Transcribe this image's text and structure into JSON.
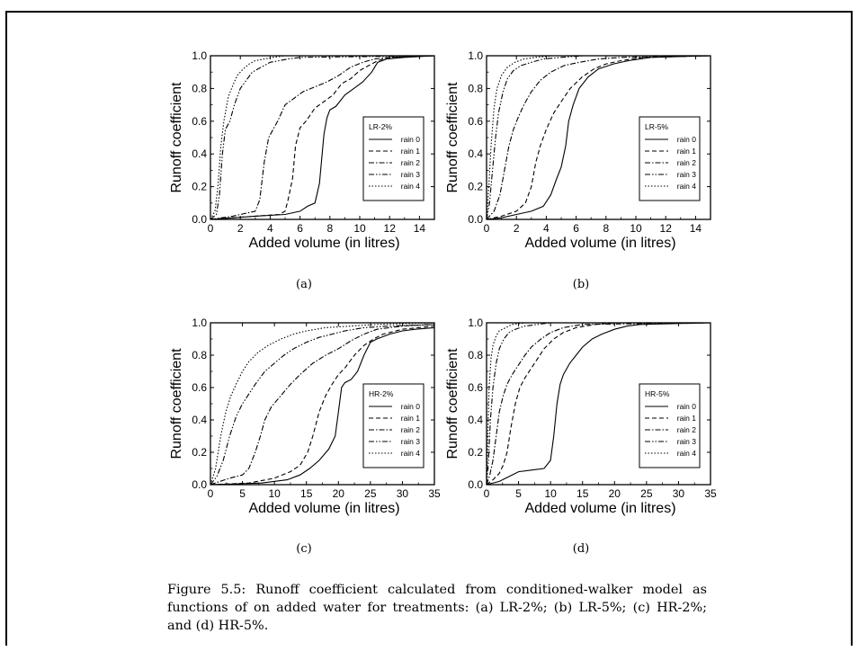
{
  "figure": {
    "caption_number": "Figure 5.5:",
    "caption_text": "Runoff coefficient calculated from conditioned-walker model as functions of on added water for treatments: (a) LR-2%; (b) LR-5%; (c) HR-2%; and (d) HR-5%."
  },
  "chart_data": [
    {
      "type": "line",
      "panel": "(a)",
      "legend_title": "LR-2%",
      "xlabel": "Added volume (in litres)",
      "ylabel": "Runoff coefficient",
      "xlim": [
        0,
        15
      ],
      "ylim": [
        0,
        1
      ],
      "xticks": [
        0,
        2,
        4,
        6,
        8,
        10,
        12,
        14
      ],
      "yticks": [
        0.0,
        0.2,
        0.4,
        0.6,
        0.8,
        1.0
      ],
      "series": [
        {
          "name": "rain 0",
          "dash": "solid",
          "x": [
            0,
            3,
            5,
            6,
            6.5,
            7,
            7.3,
            7.6,
            7.8,
            8,
            8.4,
            9,
            9.6,
            10.2,
            10.8,
            11.2,
            11.8,
            13,
            15
          ],
          "y": [
            0,
            0.02,
            0.03,
            0.05,
            0.08,
            0.1,
            0.22,
            0.52,
            0.62,
            0.67,
            0.69,
            0.76,
            0.8,
            0.84,
            0.9,
            0.96,
            0.98,
            0.99,
            1.0
          ]
        },
        {
          "name": "rain 1",
          "dash": "dashed",
          "x": [
            0,
            3,
            4.6,
            5,
            5.2,
            5.5,
            5.7,
            6,
            6.4,
            7,
            7.6,
            8.2,
            8.8,
            9.4,
            10,
            10.6,
            11.2,
            12,
            15
          ],
          "y": [
            0,
            0.02,
            0.03,
            0.05,
            0.12,
            0.25,
            0.45,
            0.56,
            0.6,
            0.68,
            0.72,
            0.76,
            0.83,
            0.86,
            0.91,
            0.94,
            0.97,
            0.99,
            1.0
          ]
        },
        {
          "name": "rain 2",
          "dash": "dashdot",
          "x": [
            0,
            1.5,
            3,
            3.3,
            3.6,
            3.9,
            4.2,
            4.5,
            5,
            5.6,
            6.2,
            7,
            7.8,
            8.6,
            9.4,
            10.2,
            11,
            12,
            15
          ],
          "y": [
            0,
            0.02,
            0.05,
            0.12,
            0.35,
            0.5,
            0.55,
            0.6,
            0.7,
            0.74,
            0.78,
            0.81,
            0.84,
            0.88,
            0.93,
            0.96,
            0.98,
            0.99,
            1.0
          ]
        },
        {
          "name": "rain 3",
          "dash": "dashdotdot",
          "x": [
            0,
            0.4,
            0.6,
            0.8,
            1,
            1.3,
            1.6,
            2,
            2.4,
            2.8,
            3.4,
            4,
            4.6,
            5.2,
            6,
            15
          ],
          "y": [
            0,
            0.03,
            0.15,
            0.4,
            0.55,
            0.6,
            0.7,
            0.8,
            0.85,
            0.9,
            0.93,
            0.96,
            0.97,
            0.98,
            0.99,
            1.0
          ]
        },
        {
          "name": "rain 4",
          "dash": "dotted",
          "x": [
            0,
            0.3,
            0.5,
            0.7,
            0.9,
            1.2,
            1.5,
            1.8,
            2.2,
            2.6,
            3,
            3.6,
            4.2,
            5,
            15
          ],
          "y": [
            0,
            0.05,
            0.2,
            0.45,
            0.6,
            0.75,
            0.82,
            0.88,
            0.92,
            0.95,
            0.97,
            0.98,
            0.99,
            1.0,
            1.0
          ]
        }
      ]
    },
    {
      "type": "line",
      "panel": "(b)",
      "legend_title": "LR-5%",
      "xlabel": "Added volume (in litres)",
      "ylabel": "Runoff coefficient",
      "xlim": [
        0,
        15
      ],
      "ylim": [
        0,
        1
      ],
      "xticks": [
        0,
        2,
        4,
        6,
        8,
        10,
        12,
        14
      ],
      "yticks": [
        0.0,
        0.2,
        0.4,
        0.6,
        0.8,
        1.0
      ],
      "series": [
        {
          "name": "rain 0",
          "dash": "solid",
          "x": [
            0,
            1,
            2,
            3,
            3.8,
            4.3,
            4.7,
            5,
            5.3,
            5.5,
            5.8,
            6.2,
            6.8,
            7.5,
            8.5,
            9.5,
            11,
            15
          ],
          "y": [
            0,
            0.01,
            0.03,
            0.05,
            0.08,
            0.15,
            0.25,
            0.32,
            0.45,
            0.6,
            0.7,
            0.8,
            0.87,
            0.92,
            0.95,
            0.97,
            0.99,
            1.0
          ]
        },
        {
          "name": "rain 1",
          "dash": "dashed",
          "x": [
            0,
            1,
            2,
            2.6,
            3,
            3.3,
            3.6,
            4,
            4.5,
            5,
            5.6,
            6.4,
            7.2,
            8,
            9,
            10.5,
            15
          ],
          "y": [
            0,
            0.02,
            0.05,
            0.1,
            0.2,
            0.35,
            0.45,
            0.55,
            0.65,
            0.72,
            0.8,
            0.87,
            0.92,
            0.95,
            0.97,
            0.99,
            1.0
          ]
        },
        {
          "name": "rain 2",
          "dash": "dashdot",
          "x": [
            0,
            0.5,
            0.9,
            1.2,
            1.5,
            1.8,
            2.1,
            2.5,
            3,
            3.6,
            4.3,
            5.2,
            6.2,
            7.5,
            9,
            15
          ],
          "y": [
            0,
            0.05,
            0.15,
            0.3,
            0.45,
            0.55,
            0.62,
            0.7,
            0.78,
            0.85,
            0.9,
            0.94,
            0.96,
            0.98,
            0.99,
            1.0
          ]
        },
        {
          "name": "rain 3",
          "dash": "dashdotdot",
          "x": [
            0,
            0.2,
            0.4,
            0.6,
            0.8,
            1.1,
            1.4,
            1.8,
            2.3,
            3,
            3.8,
            5,
            6.5,
            15
          ],
          "y": [
            0,
            0.1,
            0.3,
            0.5,
            0.65,
            0.78,
            0.86,
            0.91,
            0.94,
            0.96,
            0.98,
            0.99,
            1.0,
            1.0
          ]
        },
        {
          "name": "rain 4",
          "dash": "dotted",
          "x": [
            0,
            0.15,
            0.3,
            0.5,
            0.7,
            1,
            1.4,
            1.9,
            2.5,
            3.3,
            4.5,
            15
          ],
          "y": [
            0,
            0.2,
            0.45,
            0.68,
            0.8,
            0.88,
            0.93,
            0.96,
            0.98,
            0.99,
            1.0,
            1.0
          ]
        }
      ]
    },
    {
      "type": "line",
      "panel": "(c)",
      "legend_title": "HR-2%",
      "xlabel": "Added volume (in litres)",
      "ylabel": "Runoff coefficient",
      "xlim": [
        0,
        35
      ],
      "ylim": [
        0,
        1
      ],
      "xticks": [
        0,
        5,
        10,
        15,
        20,
        25,
        30,
        35
      ],
      "yticks": [
        0.0,
        0.2,
        0.4,
        0.6,
        0.8,
        1.0
      ],
      "series": [
        {
          "name": "rain 0",
          "dash": "solid",
          "x": [
            0,
            8,
            12,
            14,
            15.5,
            17,
            18.5,
            19.5,
            20,
            20.5,
            21,
            22,
            23,
            24,
            25,
            26,
            28,
            30,
            32,
            35
          ],
          "y": [
            0,
            0.01,
            0.03,
            0.06,
            0.1,
            0.15,
            0.22,
            0.3,
            0.45,
            0.6,
            0.63,
            0.65,
            0.7,
            0.8,
            0.88,
            0.9,
            0.93,
            0.95,
            0.96,
            0.97
          ]
        },
        {
          "name": "rain 1",
          "dash": "dashed",
          "x": [
            0,
            6,
            10,
            12.5,
            14,
            15.2,
            16,
            17,
            18,
            19,
            20,
            21,
            22.5,
            24,
            25.5,
            27,
            30,
            35
          ],
          "y": [
            0,
            0.01,
            0.04,
            0.08,
            0.12,
            0.2,
            0.3,
            0.45,
            0.55,
            0.62,
            0.68,
            0.72,
            0.8,
            0.86,
            0.9,
            0.93,
            0.96,
            0.98
          ]
        },
        {
          "name": "rain 2",
          "dash": "dashdot",
          "x": [
            0,
            3,
            5,
            6,
            7,
            7.8,
            8.5,
            9.5,
            11,
            12.5,
            14,
            16,
            18,
            20,
            22,
            24,
            26,
            30,
            35
          ],
          "y": [
            0,
            0.04,
            0.06,
            0.1,
            0.2,
            0.3,
            0.4,
            0.48,
            0.55,
            0.62,
            0.68,
            0.75,
            0.8,
            0.84,
            0.89,
            0.93,
            0.96,
            0.98,
            0.99
          ]
        },
        {
          "name": "rain 3",
          "dash": "dashdotdot",
          "x": [
            0,
            1,
            2,
            3,
            4,
            5,
            6,
            7,
            8.5,
            10,
            11.5,
            13,
            15,
            17,
            19,
            21,
            24,
            28,
            35
          ],
          "y": [
            0,
            0.05,
            0.15,
            0.3,
            0.42,
            0.5,
            0.56,
            0.62,
            0.7,
            0.75,
            0.8,
            0.84,
            0.88,
            0.91,
            0.93,
            0.95,
            0.97,
            0.98,
            0.99
          ]
        },
        {
          "name": "rain 4",
          "dash": "dotted",
          "x": [
            0,
            0.8,
            1.6,
            2.4,
            3.2,
            4,
            5,
            6,
            7.5,
            9,
            11,
            13,
            15,
            18,
            22,
            26,
            35
          ],
          "y": [
            0,
            0.1,
            0.3,
            0.45,
            0.55,
            0.62,
            0.7,
            0.76,
            0.82,
            0.86,
            0.9,
            0.93,
            0.95,
            0.97,
            0.98,
            0.99,
            1.0
          ]
        }
      ]
    },
    {
      "type": "line",
      "panel": "(d)",
      "legend_title": "HR-5%",
      "xlabel": "Added volume (in litres)",
      "ylabel": "Runoff coefficient",
      "xlim": [
        0,
        35
      ],
      "ylim": [
        0,
        1
      ],
      "xticks": [
        0,
        5,
        10,
        15,
        20,
        25,
        30,
        35
      ],
      "yticks": [
        0.0,
        0.2,
        0.4,
        0.6,
        0.8,
        1.0
      ],
      "series": [
        {
          "name": "rain 0",
          "dash": "solid",
          "x": [
            0,
            2,
            3.5,
            5,
            7,
            9,
            10,
            10.5,
            11,
            11.5,
            12,
            13,
            14,
            15,
            16.5,
            18,
            20,
            22,
            24,
            35
          ],
          "y": [
            0,
            0.02,
            0.05,
            0.08,
            0.09,
            0.1,
            0.15,
            0.3,
            0.5,
            0.62,
            0.68,
            0.75,
            0.8,
            0.85,
            0.9,
            0.93,
            0.96,
            0.98,
            0.99,
            1.0
          ]
        },
        {
          "name": "rain 1",
          "dash": "dashed",
          "x": [
            0,
            1,
            2,
            2.6,
            3.2,
            3.8,
            4.5,
            5.2,
            6,
            7,
            8,
            9,
            10.5,
            12,
            14,
            17,
            20,
            35
          ],
          "y": [
            0,
            0.03,
            0.07,
            0.12,
            0.2,
            0.35,
            0.5,
            0.6,
            0.66,
            0.72,
            0.78,
            0.84,
            0.9,
            0.94,
            0.97,
            0.99,
            1.0,
            1.0
          ]
        },
        {
          "name": "rain 2",
          "dash": "dashdot",
          "x": [
            0,
            0.5,
            1,
            1.5,
            2,
            2.6,
            3.2,
            4,
            5,
            6,
            7,
            8.5,
            10,
            12,
            15,
            35
          ],
          "y": [
            0,
            0.06,
            0.15,
            0.3,
            0.45,
            0.55,
            0.62,
            0.68,
            0.74,
            0.8,
            0.85,
            0.9,
            0.94,
            0.97,
            0.99,
            1.0
          ]
        },
        {
          "name": "rain 3",
          "dash": "dashdotdot",
          "x": [
            0,
            0.3,
            0.6,
            1,
            1.5,
            2,
            2.7,
            3.5,
            4.5,
            6,
            8,
            10,
            35
          ],
          "y": [
            0,
            0.15,
            0.4,
            0.6,
            0.75,
            0.84,
            0.9,
            0.94,
            0.96,
            0.98,
            0.99,
            1.0,
            1.0
          ]
        },
        {
          "name": "rain 4",
          "dash": "dotted",
          "x": [
            0,
            0.2,
            0.4,
            0.7,
            1,
            1.5,
            2,
            3,
            4,
            6,
            35
          ],
          "y": [
            0,
            0.3,
            0.6,
            0.78,
            0.86,
            0.92,
            0.95,
            0.97,
            0.99,
            1.0,
            1.0
          ]
        }
      ]
    }
  ]
}
